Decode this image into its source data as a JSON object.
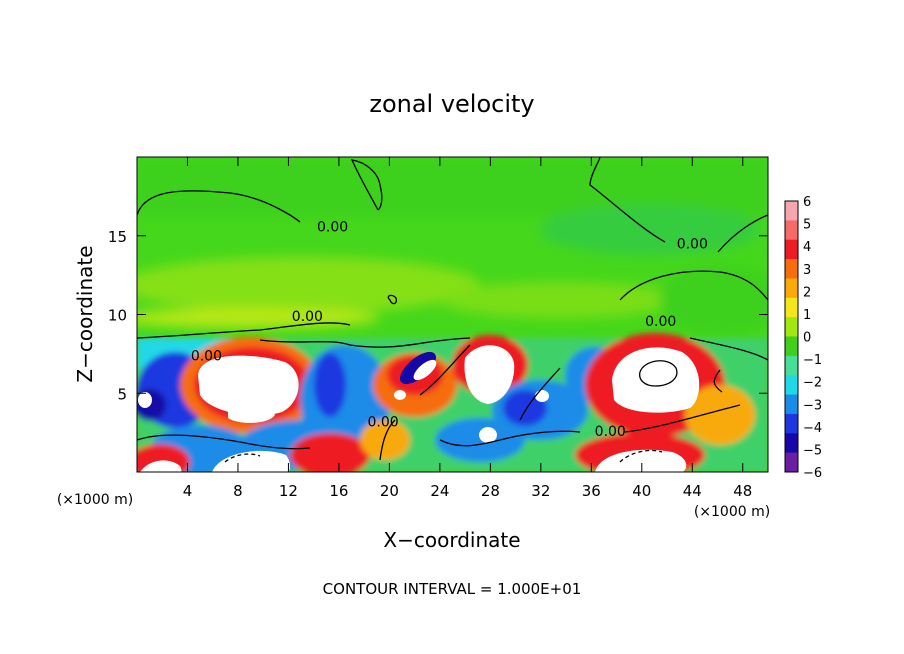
{
  "chart_data": {
    "type": "heatmap",
    "title": "zonal velocity",
    "xlabel": "X−coordinate",
    "ylabel": "Z−coordinate",
    "x_unit_left": "(×1000 m)",
    "x_unit_right": "(×1000 m)",
    "footer": "CONTOUR INTERVAL = 1.000E+01",
    "xlim": [
      0,
      50
    ],
    "ylim": [
      0,
      20
    ],
    "x_ticks": [
      4,
      8,
      12,
      16,
      20,
      24,
      28,
      32,
      36,
      40,
      44,
      48
    ],
    "y_ticks": [
      5,
      10,
      15
    ],
    "colorbar": {
      "min": -6,
      "max": 6,
      "labels": [
        "6",
        "5",
        "4",
        "3",
        "2",
        "1",
        "0",
        "−1",
        "−2",
        "−3",
        "−4",
        "−5",
        "−6"
      ],
      "colors": [
        "#f4a7b0",
        "#f76a6a",
        "#ee1c24",
        "#f66d0e",
        "#f8aa0a",
        "#f5e61a",
        "#a4e610",
        "#3ed01a",
        "#49dd9a",
        "#21d8e6",
        "#1a8ce8",
        "#1d38e0",
        "#1608a6",
        "#6a1ea4"
      ]
    },
    "contour_labels": [
      {
        "text": "0.00",
        "x": 15.5,
        "z": 15.6
      },
      {
        "text": "0.00",
        "x": 44.0,
        "z": 14.5
      },
      {
        "text": "0.00",
        "x": 13.5,
        "z": 9.9
      },
      {
        "text": "0.00",
        "x": 41.5,
        "z": 9.6
      },
      {
        "text": "0.00",
        "x": 5.5,
        "z": 7.4
      },
      {
        "text": "0.00",
        "x": 37.5,
        "z": 2.6
      },
      {
        "text": "0.00",
        "x": 19.5,
        "z": 3.2
      }
    ]
  }
}
